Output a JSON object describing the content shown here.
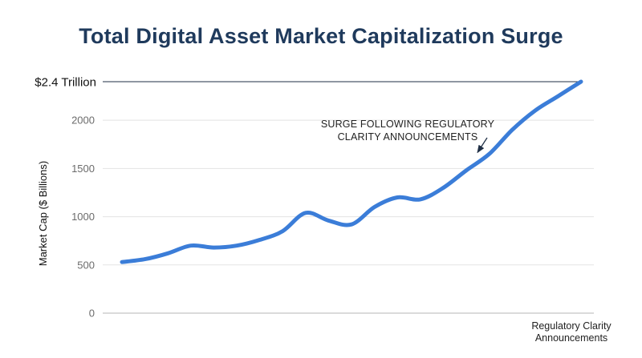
{
  "chart_data": {
    "type": "line",
    "title": "Total Digital Asset Market Capitalization Surge",
    "xlabel": "",
    "ylabel": "Market Cap ($ Billions)",
    "ylim": [
      0,
      2400
    ],
    "yticks": [
      0,
      500,
      1000,
      1500,
      2000
    ],
    "top_reference": {
      "value": 2400,
      "label": "$2.4 Trillion"
    },
    "x_category_label": [
      "Regulatory Clarity",
      "Announcements"
    ],
    "grid": true,
    "legend": "none",
    "series": [
      {
        "color": "#3b7dd8",
        "x": [
          0,
          1,
          2,
          3,
          4,
          5,
          6,
          7,
          8,
          9,
          10,
          11,
          12,
          13,
          14,
          15,
          16,
          17,
          18,
          19,
          20
        ],
        "values": [
          530,
          560,
          620,
          700,
          680,
          700,
          760,
          850,
          1040,
          960,
          920,
          1100,
          1200,
          1180,
          1300,
          1480,
          1650,
          1900,
          2100,
          2250,
          2400
        ]
      }
    ],
    "annotations": [
      {
        "text": [
          "SURGE FOLLOWING REGULATORY",
          "CLARITY ANNOUNCEMENTS"
        ],
        "points_to_x": 15.7
      }
    ]
  }
}
